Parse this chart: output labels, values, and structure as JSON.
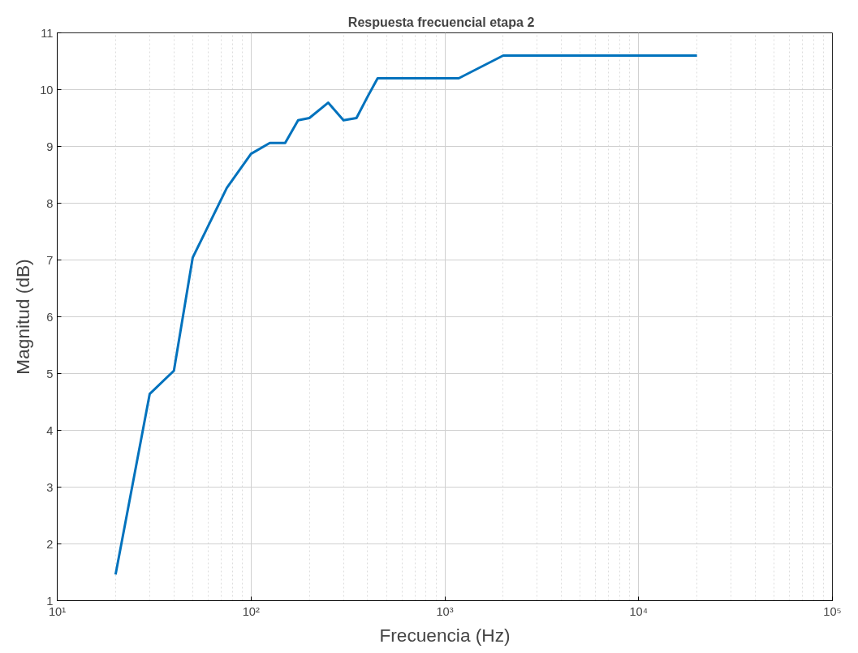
{
  "chart_data": {
    "type": "line",
    "title": "Respuesta frecuencial   etapa 2",
    "xlabel": "Frecuencia (Hz)",
    "ylabel": "Magnitud (dB)",
    "log": "x",
    "grid": true,
    "line_style": "solid",
    "xlim": [
      10,
      100000
    ],
    "xticks": [
      {
        "value": 10,
        "label": "10¹"
      },
      {
        "value": 100,
        "label": "10²"
      },
      {
        "value": 1000,
        "label": "10³"
      },
      {
        "value": 10000,
        "label": "10⁴"
      },
      {
        "value": 100000,
        "label": "10⁵"
      }
    ],
    "ylim": [
      1,
      11
    ],
    "yticks": [
      1,
      2,
      3,
      4,
      5,
      6,
      7,
      8,
      9,
      10,
      11
    ],
    "series": [
      {
        "color": "#0072bd",
        "x": [
          20,
          30,
          40,
          50,
          75,
          100,
          125,
          150,
          175,
          200,
          250,
          300,
          350,
          400,
          450,
          1180,
          2000,
          20000
        ],
        "values": [
          1.46,
          4.64,
          5.05,
          7.04,
          8.27,
          8.87,
          9.06,
          9.06,
          9.46,
          9.5,
          9.77,
          9.46,
          9.5,
          9.88,
          10.2,
          10.2,
          10.6,
          10.6
        ]
      }
    ]
  }
}
